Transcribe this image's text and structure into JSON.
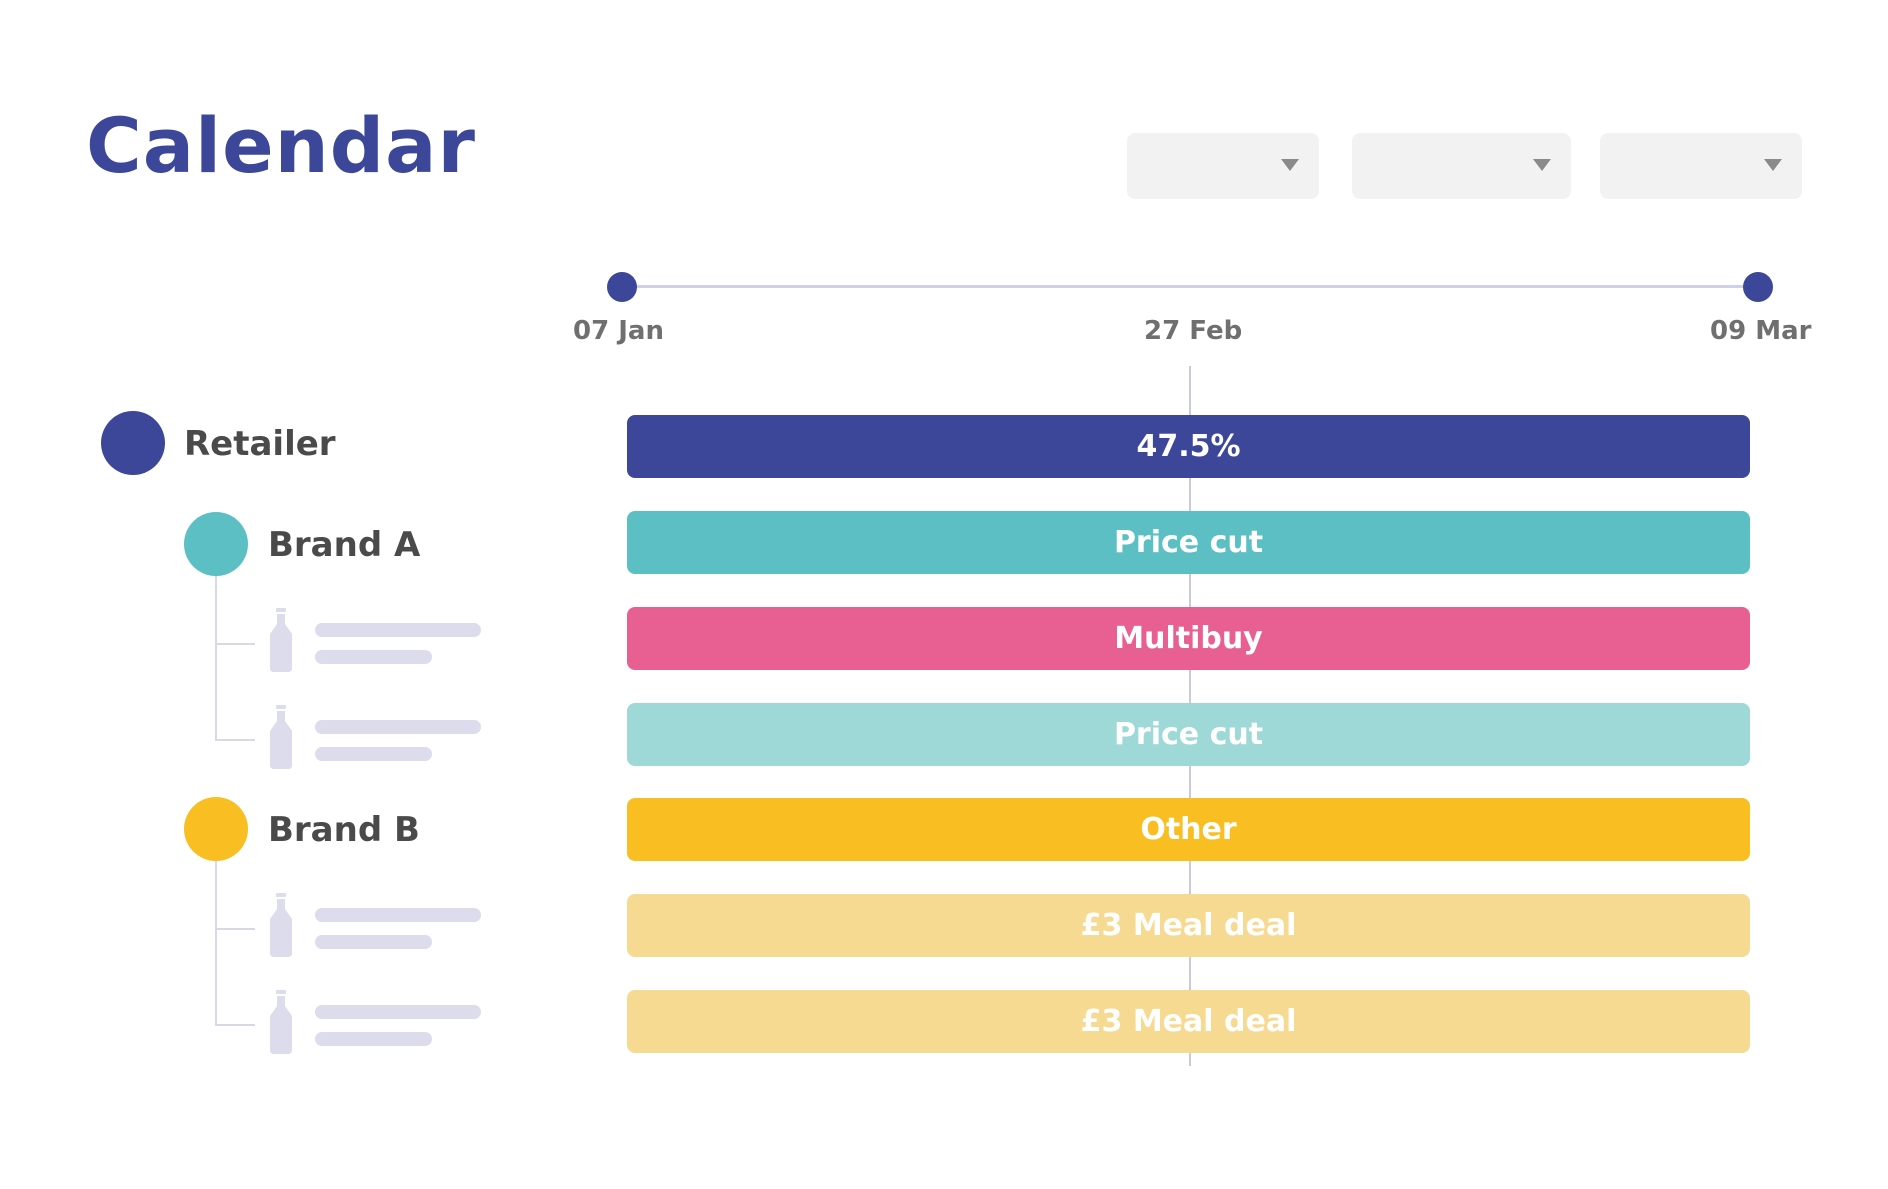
{
  "header": {
    "title": "Calendar"
  },
  "filters": [
    {
      "name": "filter-dropdown-1",
      "value": ""
    },
    {
      "name": "filter-dropdown-2",
      "value": ""
    },
    {
      "name": "filter-dropdown-3",
      "value": ""
    }
  ],
  "timeline": {
    "start_label": "07 Jan",
    "mid_label": "27 Feb",
    "end_label": "09 Mar"
  },
  "groups": {
    "retailer": {
      "label": "Retailer",
      "color": "#3c4799"
    },
    "brand_a": {
      "label": "Brand A",
      "color": "#5bbfc3"
    },
    "brand_b": {
      "label": "Brand B",
      "color": "#f8be22"
    }
  },
  "bars": [
    {
      "label": "47.5%",
      "color": "#3c4799"
    },
    {
      "label": "Price cut",
      "color": "#5bbfc3"
    },
    {
      "label": "Multibuy",
      "color": "#e86092"
    },
    {
      "label": "Price cut",
      "color": "#9ed9d8"
    },
    {
      "label": "Other",
      "color": "#f8be22"
    },
    {
      "label": "£3 Meal deal",
      "color": "#f7da92"
    },
    {
      "label": "£3 Meal deal",
      "color": "#f7da92"
    }
  ]
}
